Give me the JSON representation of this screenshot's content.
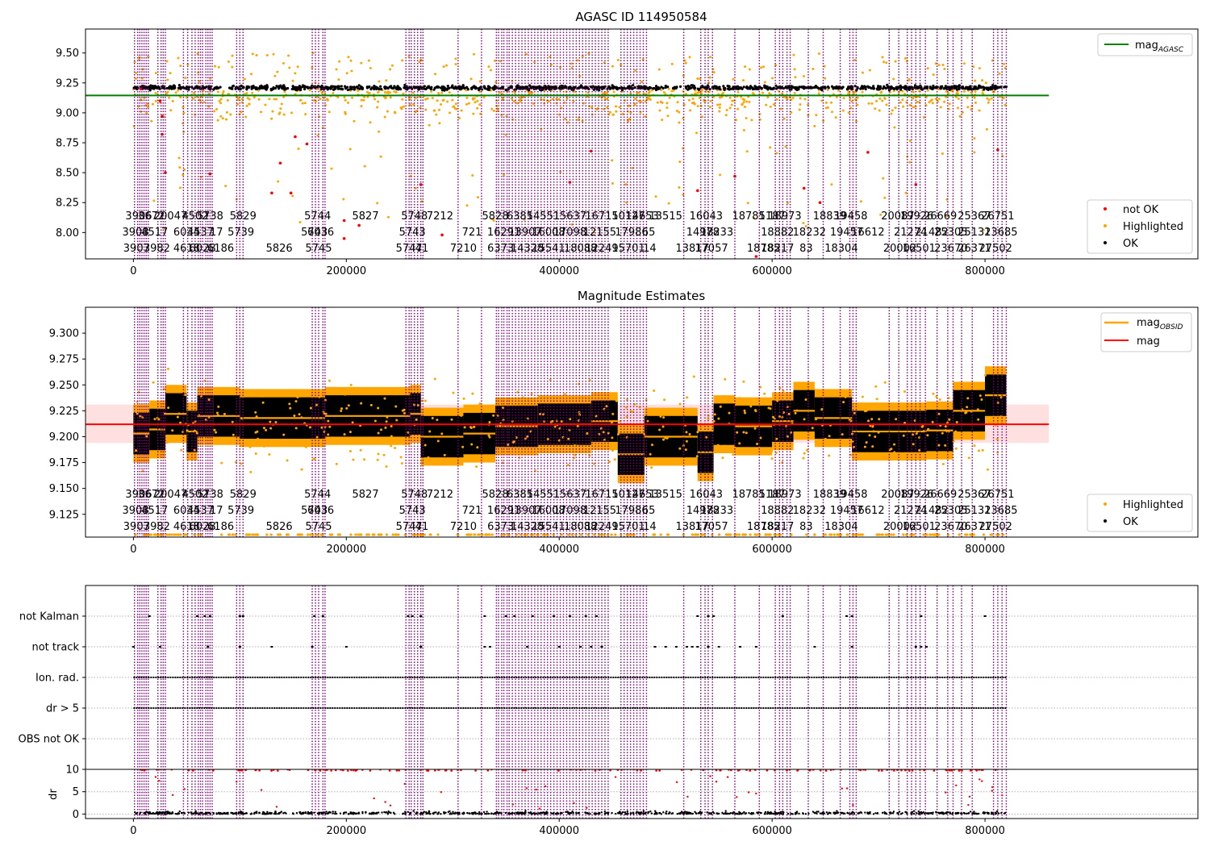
{
  "colors": {
    "orange": "#ffa500",
    "black": "#000000",
    "red": "#ff0000",
    "green": "#008000",
    "purple": "#800080",
    "band": "#ffcccc",
    "grid": "#b0b0b0"
  },
  "chart_data": [
    {
      "type": "scatter",
      "title": "AGASC ID 114950584",
      "xlim": [
        -45000,
        1000000
      ],
      "ylim": [
        7.78,
        9.7
      ],
      "xticks": [
        0,
        200000,
        400000,
        600000,
        800000
      ],
      "xtick_labels": [
        "0",
        "200000",
        "400000",
        "600000",
        "800000"
      ],
      "yticks": [
        8.0,
        8.25,
        8.5,
        8.75,
        9.0,
        9.25,
        9.5
      ],
      "ytick_labels": [
        "8.00",
        "8.25",
        "8.50",
        "8.75",
        "9.00",
        "9.25",
        "9.50"
      ],
      "reference_line": {
        "name": "mag_AGASC",
        "value": 9.145,
        "x_end": 860000
      },
      "series": [
        {
          "name": "not OK",
          "values": [
            [
              7000,
              9.2
            ],
            [
              25000,
              9.1
            ],
            [
              27000,
              8.97
            ],
            [
              27000,
              8.82
            ],
            [
              30000,
              8.5
            ],
            [
              72000,
              8.49
            ],
            [
              130000,
              8.33
            ],
            [
              138000,
              8.58
            ],
            [
              148000,
              8.33
            ],
            [
              152000,
              8.8
            ],
            [
              163000,
              8.74
            ],
            [
              198000,
              8.1
            ],
            [
              198000,
              7.95
            ],
            [
              212000,
              8.06
            ],
            [
              270000,
              8.4
            ],
            [
              290000,
              7.98
            ],
            [
              410000,
              8.42
            ],
            [
              430000,
              8.68
            ],
            [
              530000,
              8.35
            ],
            [
              565000,
              8.47
            ],
            [
              585000,
              7.8
            ],
            [
              630000,
              8.37
            ],
            [
              645000,
              8.25
            ],
            [
              690000,
              8.67
            ],
            [
              735000,
              8.4
            ],
            [
              812000,
              8.69
            ]
          ]
        },
        {
          "name": "Highlighted"
        },
        {
          "name": "OK",
          "base": 9.2
        }
      ],
      "legend": "lower-right"
    },
    {
      "type": "scatter",
      "title": "Magnitude Estimates",
      "xlim": [
        -45000,
        1000000
      ],
      "ylim": [
        9.103,
        9.325
      ],
      "xticks": [
        0,
        200000,
        400000,
        600000,
        800000
      ],
      "xtick_labels": [
        "0",
        "200000",
        "400000",
        "600000",
        "800000"
      ],
      "yticks": [
        9.125,
        9.15,
        9.175,
        9.2,
        9.225,
        9.25,
        9.275,
        9.3
      ],
      "ytick_labels": [
        "9.125",
        "9.150",
        "9.175",
        "9.200",
        "9.225",
        "9.250",
        "9.275",
        "9.300"
      ],
      "mag_line": {
        "name": "mag",
        "value": 9.212,
        "band": [
          9.194,
          9.231
        ],
        "x_end": 860000
      },
      "mag_obsid": [
        [
          0,
          15000,
          9.203
        ],
        [
          15000,
          30000,
          9.207
        ],
        [
          30000,
          50000,
          9.222
        ],
        [
          50000,
          60000,
          9.205
        ],
        [
          60000,
          75000,
          9.22
        ],
        [
          75000,
          100000,
          9.22
        ],
        [
          100000,
          180000,
          9.218
        ],
        [
          180000,
          260000,
          9.22
        ],
        [
          260000,
          270000,
          9.222
        ],
        [
          270000,
          310000,
          9.2
        ],
        [
          310000,
          340000,
          9.203
        ],
        [
          340000,
          380000,
          9.21
        ],
        [
          380000,
          430000,
          9.212
        ],
        [
          430000,
          455000,
          9.215
        ],
        [
          455000,
          480000,
          9.183
        ],
        [
          480000,
          530000,
          9.2
        ],
        [
          530000,
          545000,
          9.185
        ],
        [
          545000,
          565000,
          9.212
        ],
        [
          565000,
          600000,
          9.21
        ],
        [
          600000,
          620000,
          9.215
        ],
        [
          620000,
          640000,
          9.225
        ],
        [
          640000,
          675000,
          9.218
        ],
        [
          675000,
          720000,
          9.205
        ],
        [
          720000,
          745000,
          9.205
        ],
        [
          745000,
          770000,
          9.206
        ],
        [
          770000,
          800000,
          9.225
        ],
        [
          800000,
          820000,
          9.24
        ]
      ],
      "series": [
        {
          "name": "Highlighted"
        },
        {
          "name": "OK"
        }
      ],
      "legend": "lower-right"
    },
    {
      "type": "scatter",
      "categories": [
        "not Kalman",
        "not track",
        "Ion. rad.",
        "dr > 5",
        "OBS not OK"
      ],
      "not_kalman_x": [
        15000,
        60000,
        67000,
        72000,
        100000,
        103000,
        170000,
        178000,
        258000,
        262000,
        270000,
        330000,
        350000,
        358000,
        375000,
        395000,
        410000,
        425000,
        435000,
        530000,
        540000,
        545000,
        610000,
        670000,
        675000,
        740000,
        800000
      ],
      "not_track_x": [
        0,
        25000,
        70000,
        100000,
        130000,
        168000,
        200000,
        270000,
        330000,
        335000,
        370000,
        400000,
        420000,
        430000,
        440000,
        490000,
        500000,
        510000,
        520000,
        525000,
        530000,
        540000,
        550000,
        570000,
        585000,
        640000,
        675000,
        735000,
        740000,
        745000
      ],
      "line_range": [
        0,
        820000
      ],
      "legend": "none"
    },
    {
      "type": "scatter",
      "ylabel": "dr",
      "xlim": [
        -45000,
        1000000
      ],
      "ylim": [
        -1,
        10
      ],
      "yticks": [
        0,
        5,
        10
      ],
      "ytick_labels": [
        "0",
        "5",
        "10"
      ],
      "xticks": [
        0,
        200000,
        400000,
        600000,
        800000
      ],
      "xtick_labels": [
        "0",
        "200000",
        "400000",
        "600000",
        "800000"
      ],
      "legend": "none"
    }
  ],
  "obsid_lines": [
    1000,
    4000,
    6000,
    8000,
    10000,
    12000,
    14000,
    23000,
    26000,
    28000,
    30000,
    47000,
    51000,
    55000,
    58000,
    61000,
    63000,
    65000,
    68000,
    70000,
    72000,
    74000,
    97000,
    100000,
    103000,
    168000,
    171000,
    174000,
    178000,
    180000,
    256000,
    259000,
    261000,
    264000,
    267000,
    270000,
    272000,
    305000,
    327000,
    341000,
    343000,
    346000,
    348000,
    351000,
    353000,
    356000,
    359000,
    362000,
    365000,
    368000,
    371000,
    374000,
    377000,
    380000,
    383000,
    386000,
    389000,
    392000,
    395000,
    398000,
    401000,
    404000,
    407000,
    410000,
    413000,
    416000,
    419000,
    422000,
    425000,
    428000,
    431000,
    434000,
    437000,
    440000,
    443000,
    446000,
    458000,
    461000,
    464000,
    467000,
    470000,
    473000,
    476000,
    479000,
    482000,
    517000,
    533000,
    537000,
    540000,
    544000,
    565000,
    588000,
    603000,
    607000,
    610000,
    614000,
    617000,
    634000,
    648000,
    664000,
    673000,
    676000,
    679000,
    710000,
    719000,
    727000,
    731000,
    735000,
    739000,
    744000,
    755000,
    765000,
    770000,
    778000,
    788000,
    808000,
    812000,
    816000,
    820000
  ],
  "obsid_labels": {
    "row1": [
      {
        "text": "3906",
        "x": 5000
      },
      {
        "text": "3672",
        "x": 17000
      },
      {
        "text": "20047",
        "x": 35000
      },
      {
        "text": "4502",
        "x": 58000
      },
      {
        "text": "5738",
        "x": 72000
      },
      {
        "text": "5829",
        "x": 103000
      },
      {
        "text": "5744",
        "x": 173000
      },
      {
        "text": "5827",
        "x": 218000
      },
      {
        "text": "5748",
        "x": 264000
      },
      {
        "text": "7212",
        "x": 288000
      },
      {
        "text": "5828",
        "x": 340000
      },
      {
        "text": "6385",
        "x": 363000
      },
      {
        "text": "14551",
        "x": 385000
      },
      {
        "text": "15637",
        "x": 410000
      },
      {
        "text": "16715",
        "x": 440000
      },
      {
        "text": "10127",
        "x": 465000
      },
      {
        "text": "14653",
        "x": 478000
      },
      {
        "text": "13515",
        "x": 500000
      },
      {
        "text": "16043",
        "x": 538000
      },
      {
        "text": "18781",
        "x": 578000
      },
      {
        "text": "5187",
        "x": 600000
      },
      {
        "text": "18973",
        "x": 612000
      },
      {
        "text": "18839",
        "x": 654000
      },
      {
        "text": "19458",
        "x": 674000
      },
      {
        "text": "20087",
        "x": 718000
      },
      {
        "text": "19926",
        "x": 736000
      },
      {
        "text": "26669",
        "x": 758000
      },
      {
        "text": "25367",
        "x": 790000
      },
      {
        "text": "26751",
        "x": 812000
      }
    ],
    "row2": [
      {
        "text": "3908",
        "x": 2000
      },
      {
        "text": "4517",
        "x": 20000
      },
      {
        "text": "6034",
        "x": 50000
      },
      {
        "text": "4537",
        "x": 63000
      },
      {
        "text": "17",
        "x": 78000
      },
      {
        "text": "5739",
        "x": 101000
      },
      {
        "text": "5743",
        "x": 170000
      },
      {
        "text": "6036",
        "x": 176000
      },
      {
        "text": "5743",
        "x": 262000
      },
      {
        "text": "721",
        "x": 318000
      },
      {
        "text": "16291",
        "x": 348000
      },
      {
        "text": "13907",
        "x": 368000
      },
      {
        "text": "16008",
        "x": 390000
      },
      {
        "text": "17098",
        "x": 410000
      },
      {
        "text": "12155",
        "x": 438000
      },
      {
        "text": "17986",
        "x": 468000
      },
      {
        "text": "65",
        "x": 484000
      },
      {
        "text": "14978",
        "x": 535000
      },
      {
        "text": "18233",
        "x": 548000
      },
      {
        "text": "18882",
        "x": 605000
      },
      {
        "text": "18232",
        "x": 635000
      },
      {
        "text": "19457",
        "x": 670000
      },
      {
        "text": "16612",
        "x": 690000
      },
      {
        "text": "21274",
        "x": 730000
      },
      {
        "text": "21482",
        "x": 750000
      },
      {
        "text": "25305",
        "x": 768000
      },
      {
        "text": "25131",
        "x": 790000
      },
      {
        "text": "23685",
        "x": 815000
      }
    ],
    "row3": [
      {
        "text": "3907",
        "x": 3000
      },
      {
        "text": "3982",
        "x": 22000
      },
      {
        "text": "4618",
        "x": 50000
      },
      {
        "text": "6028",
        "x": 65000
      },
      {
        "text": "6186",
        "x": 82000
      },
      {
        "text": "5826",
        "x": 137000
      },
      {
        "text": "5745",
        "x": 174000
      },
      {
        "text": "5747",
        "x": 259000
      },
      {
        "text": "41",
        "x": 271000
      },
      {
        "text": "7210",
        "x": 310000
      },
      {
        "text": "6373",
        "x": 345000
      },
      {
        "text": "14328",
        "x": 370000
      },
      {
        "text": "15541",
        "x": 390000
      },
      {
        "text": "18088",
        "x": 420000
      },
      {
        "text": "12249",
        "x": 440000
      },
      {
        "text": "15701",
        "x": 465000
      },
      {
        "text": "14",
        "x": 485000
      },
      {
        "text": "13817",
        "x": 525000
      },
      {
        "text": "17057",
        "x": 543000
      },
      {
        "text": "18785",
        "x": 592000
      },
      {
        "text": "18217",
        "x": 605000
      },
      {
        "text": "83",
        "x": 632000
      },
      {
        "text": "18304",
        "x": 665000
      },
      {
        "text": "20002",
        "x": 720000
      },
      {
        "text": "16501",
        "x": 738000
      },
      {
        "text": "23670",
        "x": 768000
      },
      {
        "text": "26371",
        "x": 790000
      },
      {
        "text": "27502",
        "x": 810000
      }
    ]
  }
}
